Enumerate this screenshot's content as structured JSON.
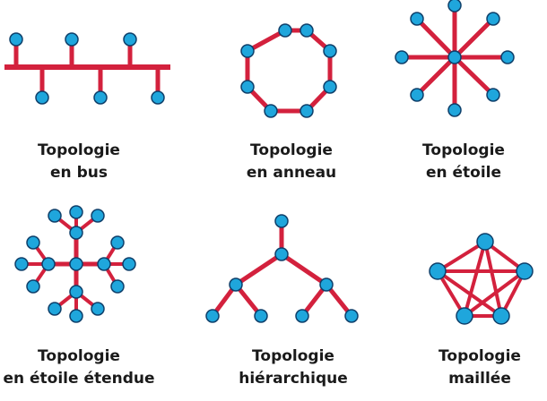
{
  "colors": {
    "link": "#d3213d",
    "node_fill": "#1fa6dc",
    "node_stroke": "#0e3f6a",
    "text": "#1a1a1a"
  },
  "topologies": [
    {
      "id": "bus",
      "line1": "Topologie",
      "line2": "en bus"
    },
    {
      "id": "ring",
      "line1": "Topologie",
      "line2": "en anneau"
    },
    {
      "id": "star",
      "line1": "Topologie",
      "line2": "en étoile"
    },
    {
      "id": "extended-star",
      "line1": "Topologie",
      "line2": "en étoile étendue"
    },
    {
      "id": "hierarchical",
      "line1": "Topologie",
      "line2": "hiérarchique"
    },
    {
      "id": "mesh",
      "line1": "Topologie",
      "line2": "maillée"
    }
  ]
}
